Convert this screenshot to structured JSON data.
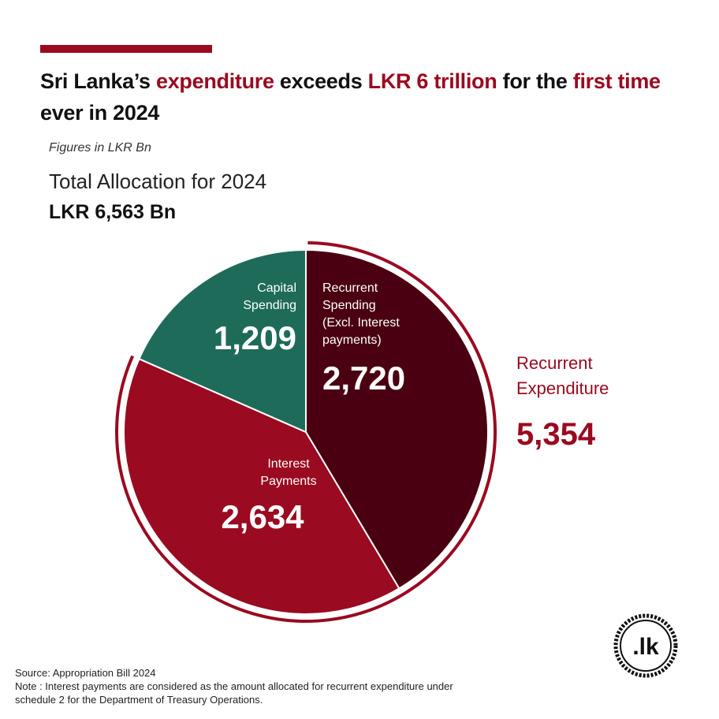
{
  "header": {
    "title_parts": [
      {
        "text": "Sri Lanka’s ",
        "highlight": false
      },
      {
        "text": "expenditure",
        "highlight": true
      },
      {
        "text": " exceeds ",
        "highlight": false
      },
      {
        "text": "LKR 6 trillion",
        "highlight": true
      },
      {
        "text": " for the ",
        "highlight": false
      },
      {
        "text": "first time",
        "highlight": true
      },
      {
        "text": " ever in 2024",
        "highlight": false
      }
    ],
    "subtitle": "Figures in LKR Bn",
    "allocation_label": "Total Allocation for 2024",
    "allocation_value": "LKR 6,563 Bn"
  },
  "colors": {
    "accent": "#9a0a20",
    "recurrent_spending": "#4a0010",
    "interest_payments": "#9a0a20",
    "capital_spending": "#1e6b5a"
  },
  "chart_data": {
    "type": "pie",
    "slices": [
      {
        "label_lines": [
          "Recurrent",
          "Spending",
          "(Excl. Interest",
          "payments)"
        ],
        "value": 2720,
        "value_label": "2,720",
        "color": "#4a0010"
      },
      {
        "label_lines": [
          "Interest",
          "Payments"
        ],
        "value": 2634,
        "value_label": "2,634",
        "color": "#9a0a20"
      },
      {
        "label_lines": [
          "Capital",
          "Spending"
        ],
        "value": 1209,
        "value_label": "1,209",
        "color": "#1e6b5a"
      }
    ],
    "total": 6563,
    "annotation": {
      "label": "Recurrent Expenditure",
      "value": "5,354"
    }
  },
  "footer": {
    "source": "Source: Appropriation Bill 2024",
    "note_line1": "Note : Interest payments are considered as the amount allocated for recurrent expenditure under",
    "note_line2": "schedule 2 for the Department of Treasury Operations."
  },
  "logo": {
    "text": ".lk",
    "icon": "lk-seal-logo"
  }
}
